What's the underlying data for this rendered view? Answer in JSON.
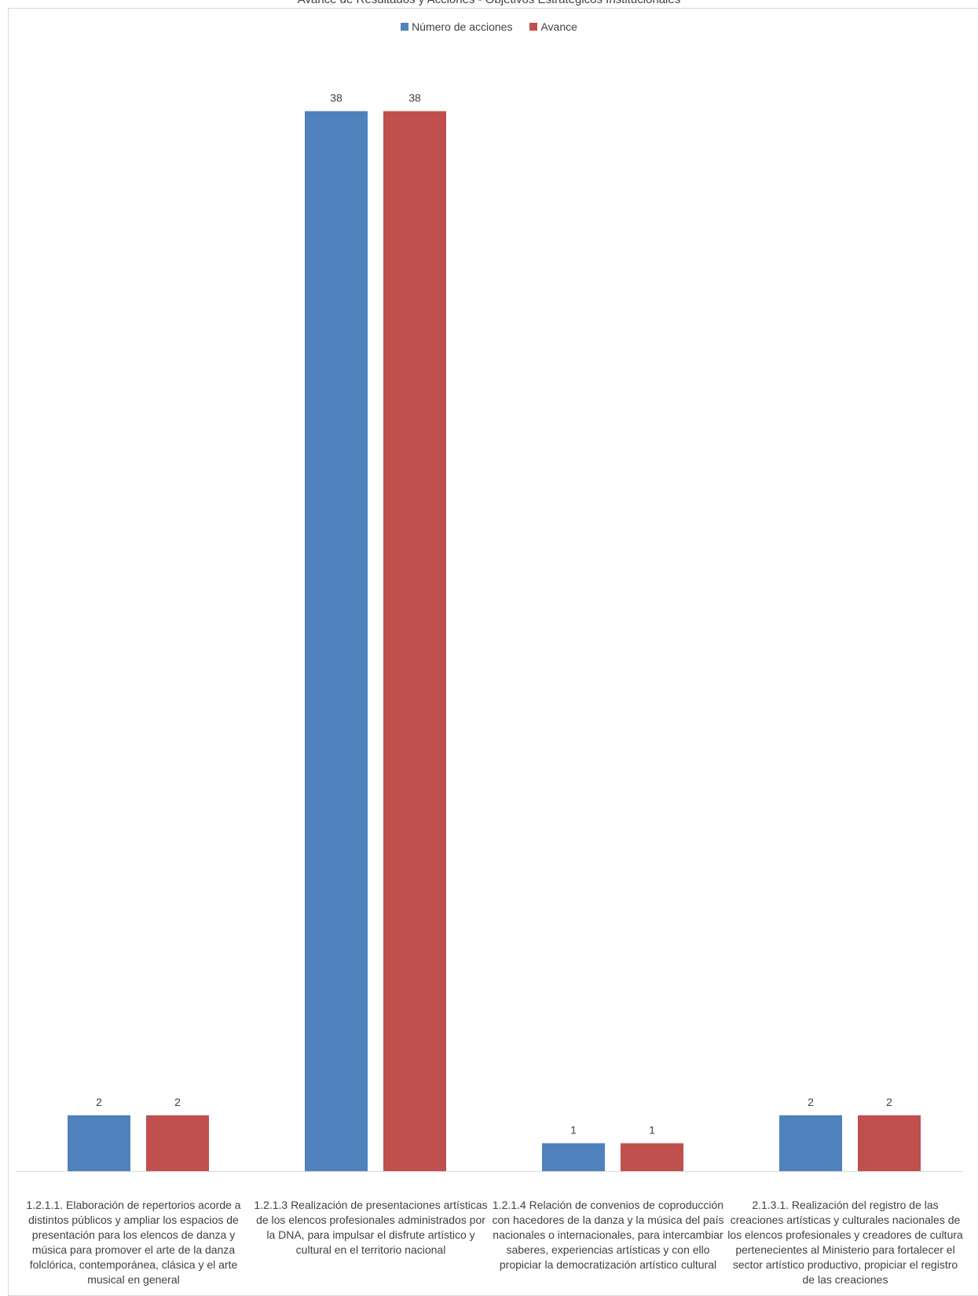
{
  "chart_data": {
    "type": "bar",
    "title": "Avance de Resultados y Acciones - Objetivos Estratégicos Institucionales",
    "xlabel": "",
    "ylabel": "",
    "categories": [
      "1.2.1.1. Elaboración de repertorios acorde a distintos públicos y ampliar los espacios de presentación para los elencos de danza y música para promover el arte de la danza folclórica, contemporánea, clásica y el arte musical en general",
      "1.2.1.3 Realización de presentaciones artísticas de los elencos profesionales administrados por la DNA, para impulsar el disfrute artístico y cultural en el territorio nacional",
      "1.2.1.4 Relación de convenios de coproducción con hacedores de la danza y la música del país nacionales o internacionales, para intercambiar saberes, experiencias artísticas y con ello propiciar la democratización artístico cultural",
      "2.1.3.1. Realización del registro de las creaciones artísticas y culturales nacionales de los elencos profesionales y creadores de cultura pertenecientes al Ministerio para fortalecer el sector artístico productivo, propiciar el registro de las creaciones"
    ],
    "series": [
      {
        "name": "Número de acciones",
        "values": [
          2,
          38,
          1,
          2
        ],
        "color": "#4f81bd"
      },
      {
        "name": "Avance",
        "values": [
          2,
          38,
          1,
          2
        ],
        "color": "#c0504d"
      }
    ],
    "ylim": [
      0,
      40
    ],
    "grid": false,
    "legend_position": "top"
  }
}
